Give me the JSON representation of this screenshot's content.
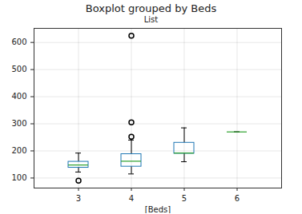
{
  "chart_data": {
    "type": "box",
    "title": "Boxplot grouped by Beds",
    "subtitle": "List",
    "x_label": "[Beds]",
    "categories": [
      3,
      4,
      5,
      6
    ],
    "whisker_low": [
      122,
      115,
      160,
      270
    ],
    "q1": [
      138,
      142,
      190,
      270
    ],
    "median": [
      148,
      162,
      192,
      270
    ],
    "q3": [
      160,
      188,
      230,
      270
    ],
    "whisker_high": [
      192,
      240,
      285,
      270
    ],
    "outliers": [
      [
        90
      ],
      [
        252,
        305,
        625
      ],
      [],
      []
    ],
    "color": "#1f77b4",
    "ylim": [
      63,
      652
    ],
    "yticks": [
      100,
      200,
      300,
      400,
      500,
      600
    ],
    "grid": true
  }
}
